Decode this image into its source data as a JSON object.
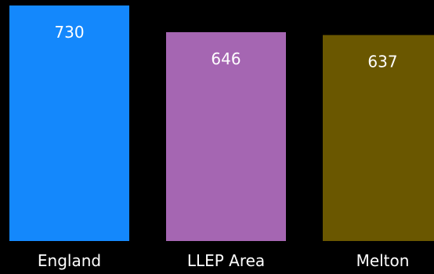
{
  "chart_data": {
    "type": "bar",
    "categories": [
      "England",
      "LLEP Area",
      "Melton"
    ],
    "values": [
      730,
      646,
      637
    ],
    "colors": [
      "#1488FC",
      "#A566B2",
      "#6A5700"
    ],
    "data_labels": [
      "730",
      "646",
      "637"
    ],
    "title": "",
    "xlabel": "",
    "ylabel": "",
    "grid": false,
    "legend": "none"
  },
  "colors": {
    "background": "#000000",
    "label_text": "#FFFFFF"
  }
}
